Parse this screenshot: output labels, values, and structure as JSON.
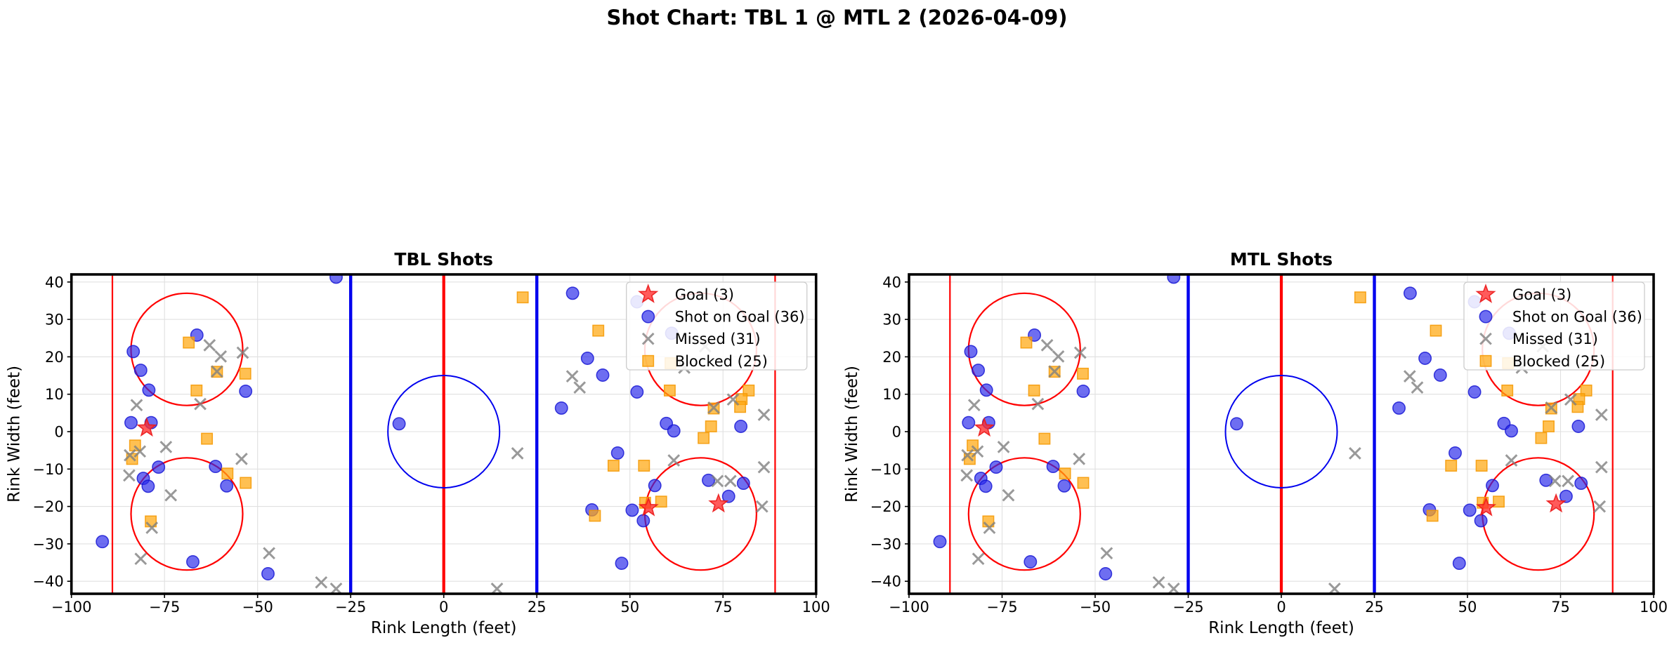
{
  "chart_data": {
    "type": "scatter",
    "suptitle": "Shot Chart: TBL 1 @ MTL 2 (2026-04-09)",
    "panels": [
      {
        "title": "TBL Shots"
      },
      {
        "title": "MTL Shots"
      }
    ],
    "xlabel": "Rink Length (feet)",
    "ylabel": "Rink Width (feet)",
    "xlim": [
      -100,
      100
    ],
    "ylim": [
      -42.5,
      42.5
    ],
    "xticks": [
      -100,
      -75,
      -50,
      -25,
      0,
      25,
      50,
      75,
      100
    ],
    "yticks": [
      -40,
      -30,
      -20,
      -10,
      0,
      10,
      20,
      30,
      40
    ],
    "grid": true,
    "legend_position": "upper right",
    "note": "Both panels display identical shot locations",
    "rink": {
      "boundary_x": [
        -100,
        100
      ],
      "boundary_y": [
        -42.5,
        42.5
      ],
      "center_line_x": 0,
      "blue_lines_x": [
        -25,
        25
      ],
      "goal_lines_x": [
        -89,
        89
      ],
      "circle_radius": 15,
      "center_circle": {
        "x": 0,
        "y": 0
      },
      "faceoff_circles": [
        {
          "x": -69,
          "y": 22
        },
        {
          "x": -69,
          "y": -22
        },
        {
          "x": 69,
          "y": 22
        },
        {
          "x": 69,
          "y": -22
        }
      ]
    },
    "series": [
      {
        "name": "Goal (3)",
        "slug": "goal",
        "marker": "star",
        "count": 3,
        "points": [
          [
            -79.8,
            1.0
          ],
          [
            55.0,
            -20.3
          ],
          [
            73.8,
            -19.3
          ]
        ]
      },
      {
        "name": "Shot on Goal (36)",
        "slug": "shot-on-goal",
        "marker": "circle",
        "count": 36,
        "points": [
          [
            -28.9,
            41.3
          ],
          [
            -91.7,
            -29.4
          ],
          [
            -83.4,
            21.4
          ],
          [
            -81.4,
            16.4
          ],
          [
            -79.2,
            11.1
          ],
          [
            -66.3,
            25.8
          ],
          [
            -53.2,
            10.8
          ],
          [
            -84.0,
            2.4
          ],
          [
            -78.6,
            2.4
          ],
          [
            -76.6,
            -9.5
          ],
          [
            -61.3,
            -9.3
          ],
          [
            -80.7,
            -12.5
          ],
          [
            -79.4,
            -14.6
          ],
          [
            -58.3,
            -14.5
          ],
          [
            -67.4,
            -34.8
          ],
          [
            -47.2,
            -38.0
          ],
          [
            -12.0,
            2.1
          ],
          [
            34.6,
            37.0
          ],
          [
            51.9,
            34.7
          ],
          [
            61.2,
            26.3
          ],
          [
            38.6,
            19.6
          ],
          [
            42.7,
            15.1
          ],
          [
            51.9,
            10.6
          ],
          [
            31.6,
            6.3
          ],
          [
            46.7,
            -5.7
          ],
          [
            56.7,
            -14.4
          ],
          [
            71.1,
            -13.0
          ],
          [
            80.5,
            -13.8
          ],
          [
            76.5,
            -17.3
          ],
          [
            39.8,
            -20.9
          ],
          [
            50.6,
            -21.0
          ],
          [
            53.6,
            -23.8
          ],
          [
            59.8,
            2.2
          ],
          [
            61.8,
            0.2
          ],
          [
            79.8,
            1.4
          ],
          [
            47.8,
            -35.2
          ]
        ]
      },
      {
        "name": "Missed (31)",
        "slug": "missed",
        "marker": "x",
        "count": 31,
        "points": [
          [
            -62.9,
            23.1
          ],
          [
            -59.9,
            20.1
          ],
          [
            -54.0,
            21.1
          ],
          [
            -60.9,
            16.1
          ],
          [
            -82.5,
            7.1
          ],
          [
            -65.4,
            7.4
          ],
          [
            -84.3,
            -6.3
          ],
          [
            -81.6,
            -5.3
          ],
          [
            -74.6,
            -4.1
          ],
          [
            -54.3,
            -7.3
          ],
          [
            -84.5,
            -11.7
          ],
          [
            -73.3,
            -17.0
          ],
          [
            -78.4,
            -25.7
          ],
          [
            -81.4,
            -34.0
          ],
          [
            -46.9,
            -32.5
          ],
          [
            -32.9,
            -40.3
          ],
          [
            -28.9,
            -42.0
          ],
          [
            19.8,
            -5.8
          ],
          [
            14.3,
            -42.0
          ],
          [
            34.5,
            14.8
          ],
          [
            36.5,
            11.8
          ],
          [
            61.8,
            -7.7
          ],
          [
            73.5,
            -13.2
          ],
          [
            77.0,
            -13.2
          ],
          [
            86.0,
            -9.5
          ],
          [
            85.5,
            -20.0
          ],
          [
            86.0,
            4.5
          ],
          [
            72.5,
            6.4
          ],
          [
            77.7,
            8.6
          ],
          [
            70.2,
            22.8
          ],
          [
            64.6,
            17.1
          ]
        ]
      },
      {
        "name": "Blocked (25)",
        "slug": "blocked",
        "marker": "square",
        "count": 25,
        "points": [
          [
            -68.5,
            23.8
          ],
          [
            -60.9,
            16.0
          ],
          [
            -53.3,
            15.5
          ],
          [
            -66.4,
            11.0
          ],
          [
            -82.9,
            -3.7
          ],
          [
            -83.7,
            -7.3
          ],
          [
            -63.6,
            -1.9
          ],
          [
            -58.1,
            -11.2
          ],
          [
            -53.2,
            -13.7
          ],
          [
            -78.7,
            -24.0
          ],
          [
            21.2,
            35.9
          ],
          [
            41.5,
            27.0
          ],
          [
            60.7,
            11.0
          ],
          [
            60.9,
            18.3
          ],
          [
            72.5,
            6.2
          ],
          [
            81.9,
            11.0
          ],
          [
            80.0,
            8.7
          ],
          [
            79.6,
            6.6
          ],
          [
            45.6,
            -9.1
          ],
          [
            53.8,
            -9.1
          ],
          [
            71.8,
            1.4
          ],
          [
            69.8,
            -1.7
          ],
          [
            54.1,
            -19.0
          ],
          [
            58.4,
            -18.7
          ],
          [
            40.6,
            -22.5
          ]
        ]
      }
    ]
  },
  "colors": {
    "goal_fill": "rgba(255,45,45,0.78)",
    "goal_edge": "rgba(235,25,25,0.9)",
    "shot_fill": "rgba(42,42,235,0.68)",
    "shot_edge": "rgba(16,16,210,0.8)",
    "missed": "rgba(128,128,128,0.8)",
    "blocked_fill": "rgba(255,167,15,0.72)",
    "blocked_edge": "rgba(245,152,0,0.85)",
    "red_line": "#ff0000",
    "blue_line": "#0000ee",
    "board": "#000000",
    "grid": "#e0e0e0",
    "legend_border": "#cccccc",
    "background": "#ffffff"
  }
}
